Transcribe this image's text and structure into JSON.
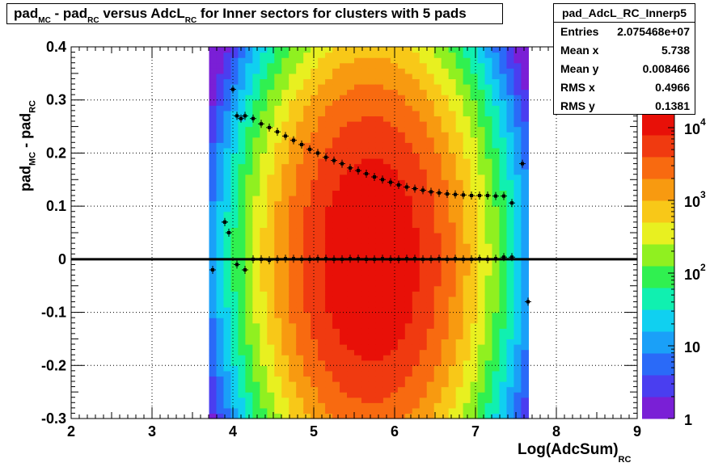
{
  "title": {
    "part1": "pad",
    "sub1": "MC",
    "part2": " - pad",
    "sub2": "RC",
    "part3": " versus AdcL",
    "sub3": "RC",
    "part4": " for Inner sectors for clusters with 5 pads"
  },
  "stats": {
    "name": "pad_AdcL_RC_Innerp5",
    "rows": [
      {
        "label": "Entries",
        "value": "2.075468e+07"
      },
      {
        "label": "Mean x",
        "value": "5.738"
      },
      {
        "label": "Mean y",
        "value": "0.008466"
      },
      {
        "label": "RMS x",
        "value": "0.4966"
      },
      {
        "label": "RMS y",
        "value": "0.1381"
      }
    ]
  },
  "axis_labels": {
    "y": {
      "part1": "pad",
      "sub1": "MC",
      "part2": " - pad",
      "sub2": "RC"
    },
    "x": {
      "main": "Log(AdcSum)",
      "sub": "RC"
    }
  },
  "chart_data": {
    "type": "heatmap",
    "xlim": [
      2,
      9
    ],
    "ylim": [
      -0.3,
      0.4
    ],
    "x_ticks": [
      "2",
      "3",
      "4",
      "5",
      "6",
      "7",
      "8",
      "9"
    ],
    "y_ticks": [
      "-0.3",
      "-0.2",
      "-0.1",
      "0",
      "0.1",
      "0.2",
      "0.3",
      "0.4"
    ],
    "grid": true,
    "z_scale": "log",
    "z_ticks": [
      "1",
      "10",
      "10^2",
      "10^3",
      "10^4"
    ],
    "palette": [
      "#7a1fd6",
      "#4a3ef0",
      "#2a6af8",
      "#1aa0f8",
      "#10d0f0",
      "#10f0b0",
      "#30f050",
      "#90f020",
      "#e8f020",
      "#f8c818",
      "#f89a10",
      "#f86a10",
      "#f03a10",
      "#e81008"
    ],
    "colors": {
      "frame": "#000000",
      "grid": "#000000",
      "profile": "#000000",
      "bg": "#ffffff"
    },
    "distribution": {
      "x_mean": 5.7,
      "x_sigma": 0.5,
      "y_mean": 0.0,
      "y_sigma": 0.13,
      "x_range": [
        3.75,
        7.65
      ],
      "peak_log10": 4.2
    },
    "profile_rms": {
      "x": [
        3.9,
        3.95,
        4.0,
        4.05,
        4.1,
        4.15,
        4.25,
        4.35,
        4.45,
        4.55,
        4.65,
        4.75,
        4.85,
        4.95,
        5.05,
        5.15,
        5.25,
        5.35,
        5.45,
        5.55,
        5.65,
        5.75,
        5.85,
        5.95,
        6.05,
        6.15,
        6.25,
        6.35,
        6.45,
        6.55,
        6.65,
        6.75,
        6.85,
        6.95,
        7.05,
        7.15,
        7.25,
        7.35,
        7.45,
        7.58
      ],
      "y": [
        0.07,
        0.05,
        0.32,
        0.27,
        0.265,
        0.27,
        0.265,
        0.255,
        0.248,
        0.24,
        0.232,
        0.224,
        0.216,
        0.207,
        0.2,
        0.192,
        0.186,
        0.18,
        0.172,
        0.167,
        0.161,
        0.155,
        0.15,
        0.145,
        0.14,
        0.136,
        0.133,
        0.13,
        0.127,
        0.125,
        0.123,
        0.122,
        0.121,
        0.12,
        0.12,
        0.12,
        0.119,
        0.119,
        0.106,
        0.18
      ]
    },
    "profile_mean": {
      "x": [
        3.75,
        3.9,
        3.95,
        4.05,
        4.15,
        4.25,
        4.35,
        4.45,
        4.55,
        4.65,
        4.75,
        4.85,
        4.95,
        5.05,
        5.15,
        5.25,
        5.35,
        5.45,
        5.55,
        5.65,
        5.75,
        5.85,
        5.95,
        6.05,
        6.15,
        6.25,
        6.35,
        6.45,
        6.55,
        6.65,
        6.75,
        6.85,
        6.95,
        7.05,
        7.15,
        7.25,
        7.35,
        7.45,
        7.65
      ],
      "y": [
        -0.02,
        0.07,
        0.05,
        -0.01,
        -0.02,
        0.0,
        0.0,
        -0.002,
        0.0,
        0.001,
        0.001,
        0.0,
        0.0,
        0.001,
        0.001,
        0.0,
        0.0,
        0.001,
        0.001,
        0.0,
        0.0,
        0.001,
        0.0,
        0.0,
        0.001,
        0.001,
        0.0,
        0.0,
        0.001,
        0.0,
        0.001,
        0.0,
        0.0,
        0.001,
        0.0,
        0.001,
        0.004,
        0.004,
        -0.08
      ]
    },
    "zero_line": 0
  }
}
